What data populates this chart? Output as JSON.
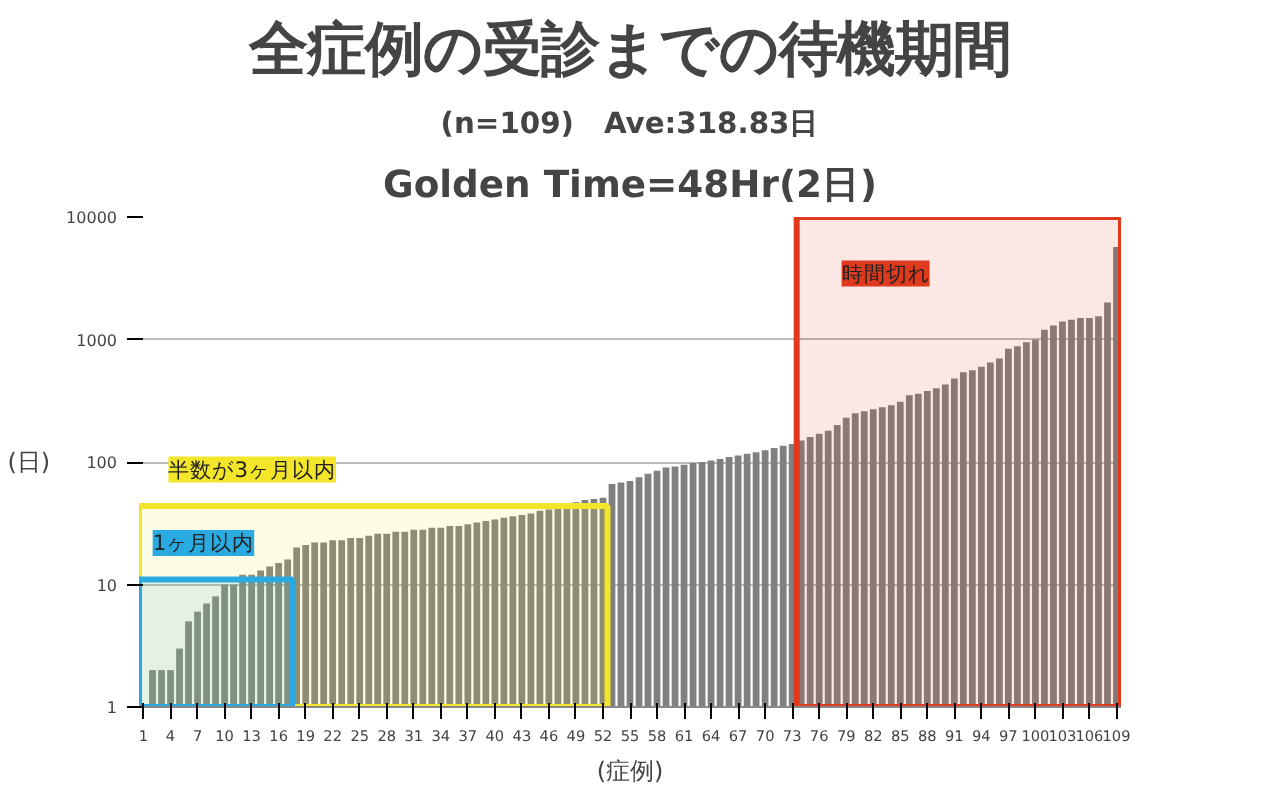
{
  "chart_data": {
    "type": "bar",
    "title": "全症例の受診までの待機期間",
    "subtitle": "(n=109)　Ave:318.83日",
    "annotations": [
      "Golden Time=48Hr(2日)"
    ],
    "xlabel": "(症例)",
    "ylabel": "(日)",
    "x": [
      1,
      2,
      3,
      4,
      5,
      6,
      7,
      8,
      9,
      10,
      11,
      12,
      13,
      14,
      15,
      16,
      17,
      18,
      19,
      20,
      21,
      22,
      23,
      24,
      25,
      26,
      27,
      28,
      29,
      30,
      31,
      32,
      33,
      34,
      35,
      36,
      37,
      38,
      39,
      40,
      41,
      42,
      43,
      44,
      45,
      46,
      47,
      48,
      49,
      50,
      51,
      52,
      53,
      54,
      55,
      56,
      57,
      58,
      59,
      60,
      61,
      62,
      63,
      64,
      65,
      66,
      67,
      68,
      69,
      70,
      71,
      72,
      73,
      74,
      75,
      76,
      77,
      78,
      79,
      80,
      81,
      82,
      83,
      84,
      85,
      86,
      87,
      88,
      89,
      90,
      91,
      92,
      93,
      94,
      95,
      96,
      97,
      98,
      99,
      100,
      101,
      102,
      103,
      104,
      105,
      106,
      107,
      108,
      109
    ],
    "values": [
      1,
      2,
      2,
      2,
      3,
      5,
      6,
      7,
      8,
      10,
      10,
      12,
      12,
      13,
      14,
      15,
      16,
      20,
      21,
      22,
      22,
      23,
      23,
      24,
      24,
      25,
      26,
      26,
      27,
      27,
      28,
      28,
      29,
      29,
      30,
      30,
      31,
      32,
      33,
      34,
      35,
      36,
      37,
      38,
      40,
      41,
      43,
      45,
      47,
      49,
      50,
      51,
      66,
      68,
      70,
      75,
      80,
      85,
      90,
      92,
      95,
      98,
      100,
      103,
      106,
      110,
      113,
      117,
      120,
      125,
      130,
      136,
      140,
      150,
      160,
      170,
      180,
      200,
      230,
      250,
      260,
      270,
      280,
      290,
      310,
      350,
      360,
      380,
      400,
      430,
      480,
      540,
      560,
      600,
      650,
      700,
      840,
      880,
      950,
      1000,
      1200,
      1300,
      1400,
      1450,
      1500,
      1500,
      1550,
      2000,
      5700
    ],
    "color": "#808080",
    "xlim": [
      0.5,
      109.5
    ],
    "xticks": [
      1,
      4,
      7,
      10,
      13,
      16,
      19,
      22,
      25,
      28,
      31,
      34,
      37,
      40,
      43,
      46,
      49,
      52,
      55,
      58,
      61,
      64,
      67,
      70,
      73,
      76,
      79,
      82,
      85,
      88,
      91,
      94,
      97,
      100,
      103,
      106,
      109
    ],
    "log": "y",
    "ylim": [
      1,
      10000
    ],
    "yticks": [
      1,
      10,
      100,
      1000,
      10000
    ],
    "grid": "y",
    "bands": [
      {
        "axis": "x",
        "from": 0.5,
        "to": 52.5,
        "label": "半数が3ヶ月以内",
        "color": "#f2e52a"
      },
      {
        "axis": "x",
        "from": 0.5,
        "to": 17.5,
        "label": "1ヶ月以内",
        "color": "#29abe2"
      },
      {
        "axis": "x",
        "from": 73.5,
        "to": 109.5,
        "label": "時間切れ",
        "color": "#e03a1e"
      }
    ]
  }
}
